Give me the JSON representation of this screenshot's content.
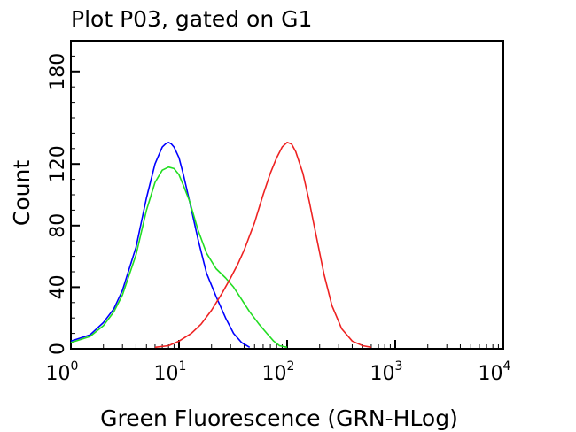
{
  "chart_data": {
    "type": "line",
    "title": "Plot P03, gated on G1",
    "xlabel": "Green Fluorescence (GRN-HLog)",
    "ylabel": "Count",
    "x_scale": "log",
    "xlim": [
      1,
      10000
    ],
    "ylim": [
      0,
      200
    ],
    "x_ticks": [
      {
        "base": "10",
        "exp": "0",
        "value": 1
      },
      {
        "base": "10",
        "exp": "1",
        "value": 10
      },
      {
        "base": "10",
        "exp": "2",
        "value": 100
      },
      {
        "base": "10",
        "exp": "3",
        "value": 1000
      },
      {
        "base": "10",
        "exp": "4",
        "value": 10000
      }
    ],
    "y_ticks": [
      {
        "label": "0",
        "value": 0
      },
      {
        "label": "40",
        "value": 40
      },
      {
        "label": "80",
        "value": 80
      },
      {
        "label": "120",
        "value": 120
      },
      {
        "label": "180",
        "value": 180
      }
    ],
    "grid": false,
    "series": [
      {
        "color": "#0000ff",
        "x": [
          1.0,
          1.5,
          2.0,
          2.5,
          3.0,
          4.0,
          5.0,
          6.0,
          7.0,
          7.5,
          8.0,
          8.5,
          9.0,
          10.0,
          11.0,
          12.5,
          15.0,
          18.0,
          22.0,
          27.0,
          32.0,
          38.0,
          45.0
        ],
        "y": [
          5,
          9,
          17,
          26,
          38,
          66,
          98,
          120,
          131,
          133,
          134,
          133,
          131,
          124,
          113,
          96,
          71,
          49,
          34,
          20,
          10,
          4,
          1
        ]
      },
      {
        "color": "#22dd22",
        "x": [
          1.0,
          1.5,
          2.0,
          2.5,
          3.0,
          4.0,
          5.0,
          6.0,
          7.0,
          8.0,
          9.0,
          10.0,
          11.0,
          12.5,
          15.0,
          18.0,
          22.0,
          27.0,
          32.0,
          38.0,
          45.0,
          55.0,
          65.0,
          75.0,
          85.0,
          100.0
        ],
        "y": [
          4,
          8,
          15,
          24,
          35,
          61,
          90,
          108,
          116,
          118,
          117,
          113,
          106,
          96,
          77,
          62,
          52,
          46,
          40,
          32,
          24,
          16,
          10,
          5,
          2,
          1
        ]
      },
      {
        "color": "#ee2222",
        "x": [
          6.0,
          8.0,
          10.0,
          13.0,
          16.0,
          20.0,
          25.0,
          30.0,
          35.0,
          40.0,
          50.0,
          60.0,
          70.0,
          80.0,
          90.0,
          100.0,
          110.0,
          120.0,
          140.0,
          160.0,
          190.0,
          220.0,
          260.0,
          320.0,
          400.0,
          500.0,
          600.0
        ],
        "y": [
          1,
          2,
          5,
          10,
          16,
          25,
          36,
          46,
          55,
          64,
          82,
          100,
          114,
          124,
          131,
          134,
          133,
          128,
          114,
          96,
          70,
          48,
          28,
          13,
          5,
          2,
          1
        ]
      }
    ]
  }
}
